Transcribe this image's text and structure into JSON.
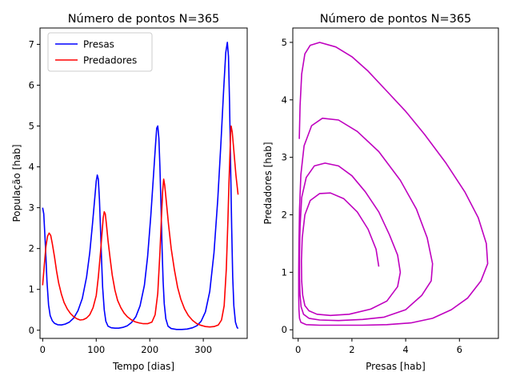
{
  "chart_data": [
    {
      "type": "line",
      "title": "Número de pontos N=365",
      "xlabel": "Tempo [dias]",
      "ylabel": "População [hab]",
      "xlim": [
        -5.0,
        382.0
      ],
      "ylim": [
        -0.2,
        7.4
      ],
      "xticks": [
        0,
        100,
        200,
        300
      ],
      "yticks": [
        0,
        1,
        2,
        3,
        4,
        5,
        6,
        7
      ],
      "legend": "top-left",
      "series": [
        {
          "name": "Presas",
          "color": "#0000ff",
          "points": [
            [
              0,
              3.0
            ],
            [
              2,
              2.85
            ],
            [
              5,
              2.1
            ],
            [
              8,
              1.2
            ],
            [
              11,
              0.62
            ],
            [
              14,
              0.36
            ],
            [
              18,
              0.23
            ],
            [
              22,
              0.17
            ],
            [
              28,
              0.135
            ],
            [
              35,
              0.13
            ],
            [
              42,
              0.15
            ],
            [
              50,
              0.2
            ],
            [
              58,
              0.3
            ],
            [
              66,
              0.48
            ],
            [
              74,
              0.78
            ],
            [
              82,
              1.3
            ],
            [
              88,
              1.9
            ],
            [
              93,
              2.6
            ],
            [
              97,
              3.2
            ],
            [
              100,
              3.65
            ],
            [
              102,
              3.8
            ],
            [
              104,
              3.7
            ],
            [
              106,
              3.2
            ],
            [
              108,
              2.5
            ],
            [
              110,
              1.7
            ],
            [
              112,
              1.05
            ],
            [
              115,
              0.5
            ],
            [
              118,
              0.22
            ],
            [
              122,
              0.1
            ],
            [
              128,
              0.06
            ],
            [
              135,
              0.05
            ],
            [
              142,
              0.05
            ],
            [
              150,
              0.07
            ],
            [
              158,
              0.11
            ],
            [
              166,
              0.19
            ],
            [
              174,
              0.33
            ],
            [
              182,
              0.6
            ],
            [
              190,
              1.1
            ],
            [
              196,
              1.8
            ],
            [
              202,
              2.8
            ],
            [
              207,
              3.8
            ],
            [
              211,
              4.6
            ],
            [
              213,
              4.95
            ],
            [
              215,
              5.0
            ],
            [
              217,
              4.7
            ],
            [
              219,
              4.0
            ],
            [
              221,
              3.0
            ],
            [
              223,
              2.0
            ],
            [
              225,
              1.2
            ],
            [
              227,
              0.65
            ],
            [
              230,
              0.28
            ],
            [
              234,
              0.1
            ],
            [
              240,
              0.04
            ],
            [
              250,
              0.02
            ],
            [
              260,
              0.02
            ],
            [
              270,
              0.03
            ],
            [
              280,
              0.06
            ],
            [
              288,
              0.11
            ],
            [
              296,
              0.22
            ],
            [
              304,
              0.45
            ],
            [
              312,
              0.95
            ],
            [
              320,
              1.9
            ],
            [
              327,
              3.2
            ],
            [
              333,
              4.6
            ],
            [
              338,
              5.9
            ],
            [
              342,
              6.8
            ],
            [
              345,
              7.05
            ],
            [
              347,
              6.7
            ],
            [
              349,
              5.6
            ],
            [
              351,
              4.0
            ],
            [
              353,
              2.5
            ],
            [
              355,
              1.3
            ],
            [
              357,
              0.6
            ],
            [
              360,
              0.2
            ],
            [
              363,
              0.07
            ],
            [
              365,
              0.04
            ]
          ]
        },
        {
          "name": "Predadores",
          "color": "#ff0000",
          "points": [
            [
              0,
              1.1
            ],
            [
              3,
              1.6
            ],
            [
              6,
              2.05
            ],
            [
              9,
              2.3
            ],
            [
              12,
              2.38
            ],
            [
              15,
              2.32
            ],
            [
              18,
              2.12
            ],
            [
              22,
              1.8
            ],
            [
              26,
              1.45
            ],
            [
              30,
              1.15
            ],
            [
              35,
              0.88
            ],
            [
              40,
              0.68
            ],
            [
              46,
              0.52
            ],
            [
              52,
              0.41
            ],
            [
              58,
              0.33
            ],
            [
              64,
              0.28
            ],
            [
              70,
              0.25
            ],
            [
              76,
              0.26
            ],
            [
              82,
              0.3
            ],
            [
              88,
              0.38
            ],
            [
              94,
              0.55
            ],
            [
              100,
              0.85
            ],
            [
              104,
              1.3
            ],
            [
              108,
              1.9
            ],
            [
              111,
              2.4
            ],
            [
              113,
              2.75
            ],
            [
              115,
              2.9
            ],
            [
              117,
              2.85
            ],
            [
              119,
              2.6
            ],
            [
              122,
              2.2
            ],
            [
              126,
              1.75
            ],
            [
              130,
              1.35
            ],
            [
              135,
              0.98
            ],
            [
              140,
              0.73
            ],
            [
              146,
              0.55
            ],
            [
              152,
              0.42
            ],
            [
              158,
              0.33
            ],
            [
              165,
              0.26
            ],
            [
              172,
              0.21
            ],
            [
              180,
              0.18
            ],
            [
              188,
              0.16
            ],
            [
              196,
              0.16
            ],
            [
              204,
              0.2
            ],
            [
              210,
              0.38
            ],
            [
              215,
              0.9
            ],
            [
              219,
              1.9
            ],
            [
              222,
              2.8
            ],
            [
              224,
              3.4
            ],
            [
              226,
              3.7
            ],
            [
              228,
              3.55
            ],
            [
              231,
              3.15
            ],
            [
              235,
              2.6
            ],
            [
              240,
              2.0
            ],
            [
              246,
              1.48
            ],
            [
              252,
              1.05
            ],
            [
              258,
              0.76
            ],
            [
              265,
              0.52
            ],
            [
              272,
              0.36
            ],
            [
              280,
              0.24
            ],
            [
              288,
              0.16
            ],
            [
              296,
              0.12
            ],
            [
              304,
              0.09
            ],
            [
              312,
              0.08
            ],
            [
              320,
              0.09
            ],
            [
              328,
              0.13
            ],
            [
              334,
              0.25
            ],
            [
              339,
              0.6
            ],
            [
              343,
              1.5
            ],
            [
              346,
              2.7
            ],
            [
              348,
              3.6
            ],
            [
              350,
              4.4
            ],
            [
              351,
              4.85
            ],
            [
              352,
              5.0
            ],
            [
              354,
              4.85
            ],
            [
              357,
              4.4
            ],
            [
              361,
              3.8
            ],
            [
              365,
              3.32
            ]
          ]
        }
      ]
    },
    {
      "type": "line",
      "title": "Número de pontos N=365",
      "xlabel": "Presas [hab]",
      "ylabel": "Predadores [hab]",
      "xlim": [
        -0.2,
        7.45
      ],
      "ylim": [
        -0.15,
        5.25
      ],
      "xticks": [
        0,
        2,
        4,
        6
      ],
      "yticks": [
        0,
        1,
        2,
        3,
        4,
        5
      ],
      "series": [
        {
          "color": "#bf00bf",
          "points": [
            [
              3.0,
              1.1
            ],
            [
              2.9,
              1.4
            ],
            [
              2.6,
              1.75
            ],
            [
              2.2,
              2.05
            ],
            [
              1.7,
              2.28
            ],
            [
              1.2,
              2.38
            ],
            [
              0.8,
              2.37
            ],
            [
              0.45,
              2.25
            ],
            [
              0.25,
              2.0
            ],
            [
              0.15,
              1.6
            ],
            [
              0.12,
              1.2
            ],
            [
              0.13,
              0.85
            ],
            [
              0.17,
              0.6
            ],
            [
              0.25,
              0.42
            ],
            [
              0.4,
              0.33
            ],
            [
              0.7,
              0.27
            ],
            [
              1.2,
              0.25
            ],
            [
              1.9,
              0.27
            ],
            [
              2.7,
              0.36
            ],
            [
              3.3,
              0.5
            ],
            [
              3.7,
              0.75
            ],
            [
              3.8,
              1.0
            ],
            [
              3.7,
              1.3
            ],
            [
              3.4,
              1.65
            ],
            [
              3.0,
              2.05
            ],
            [
              2.5,
              2.4
            ],
            [
              2.0,
              2.68
            ],
            [
              1.5,
              2.85
            ],
            [
              1.0,
              2.9
            ],
            [
              0.6,
              2.85
            ],
            [
              0.3,
              2.65
            ],
            [
              0.13,
              2.3
            ],
            [
              0.07,
              1.8
            ],
            [
              0.05,
              1.3
            ],
            [
              0.05,
              0.9
            ],
            [
              0.07,
              0.6
            ],
            [
              0.11,
              0.4
            ],
            [
              0.2,
              0.27
            ],
            [
              0.4,
              0.2
            ],
            [
              0.8,
              0.17
            ],
            [
              1.5,
              0.16
            ],
            [
              2.4,
              0.18
            ],
            [
              3.2,
              0.22
            ],
            [
              4.0,
              0.35
            ],
            [
              4.6,
              0.6
            ],
            [
              4.95,
              0.85
            ],
            [
              5.0,
              1.15
            ],
            [
              4.8,
              1.6
            ],
            [
              4.4,
              2.1
            ],
            [
              3.8,
              2.6
            ],
            [
              3.0,
              3.1
            ],
            [
              2.2,
              3.45
            ],
            [
              1.5,
              3.65
            ],
            [
              0.9,
              3.68
            ],
            [
              0.5,
              3.55
            ],
            [
              0.22,
              3.2
            ],
            [
              0.1,
              2.7
            ],
            [
              0.05,
              2.1
            ],
            [
              0.03,
              1.5
            ],
            [
              0.02,
              1.0
            ],
            [
              0.02,
              0.6
            ],
            [
              0.03,
              0.35
            ],
            [
              0.05,
              0.2
            ],
            [
              0.1,
              0.13
            ],
            [
              0.3,
              0.09
            ],
            [
              0.8,
              0.08
            ],
            [
              1.5,
              0.08
            ],
            [
              2.4,
              0.08
            ],
            [
              3.3,
              0.09
            ],
            [
              4.2,
              0.12
            ],
            [
              5.0,
              0.2
            ],
            [
              5.7,
              0.35
            ],
            [
              6.3,
              0.55
            ],
            [
              6.8,
              0.85
            ],
            [
              7.05,
              1.15
            ],
            [
              7.0,
              1.5
            ],
            [
              6.7,
              1.95
            ],
            [
              6.2,
              2.4
            ],
            [
              5.5,
              2.9
            ],
            [
              4.7,
              3.4
            ],
            [
              4.0,
              3.8
            ],
            [
              3.3,
              4.15
            ],
            [
              2.6,
              4.5
            ],
            [
              2.0,
              4.75
            ],
            [
              1.4,
              4.92
            ],
            [
              0.8,
              5.0
            ],
            [
              0.45,
              4.95
            ],
            [
              0.25,
              4.8
            ],
            [
              0.13,
              4.45
            ],
            [
              0.07,
              3.9
            ],
            [
              0.04,
              3.32
            ]
          ]
        }
      ]
    }
  ]
}
